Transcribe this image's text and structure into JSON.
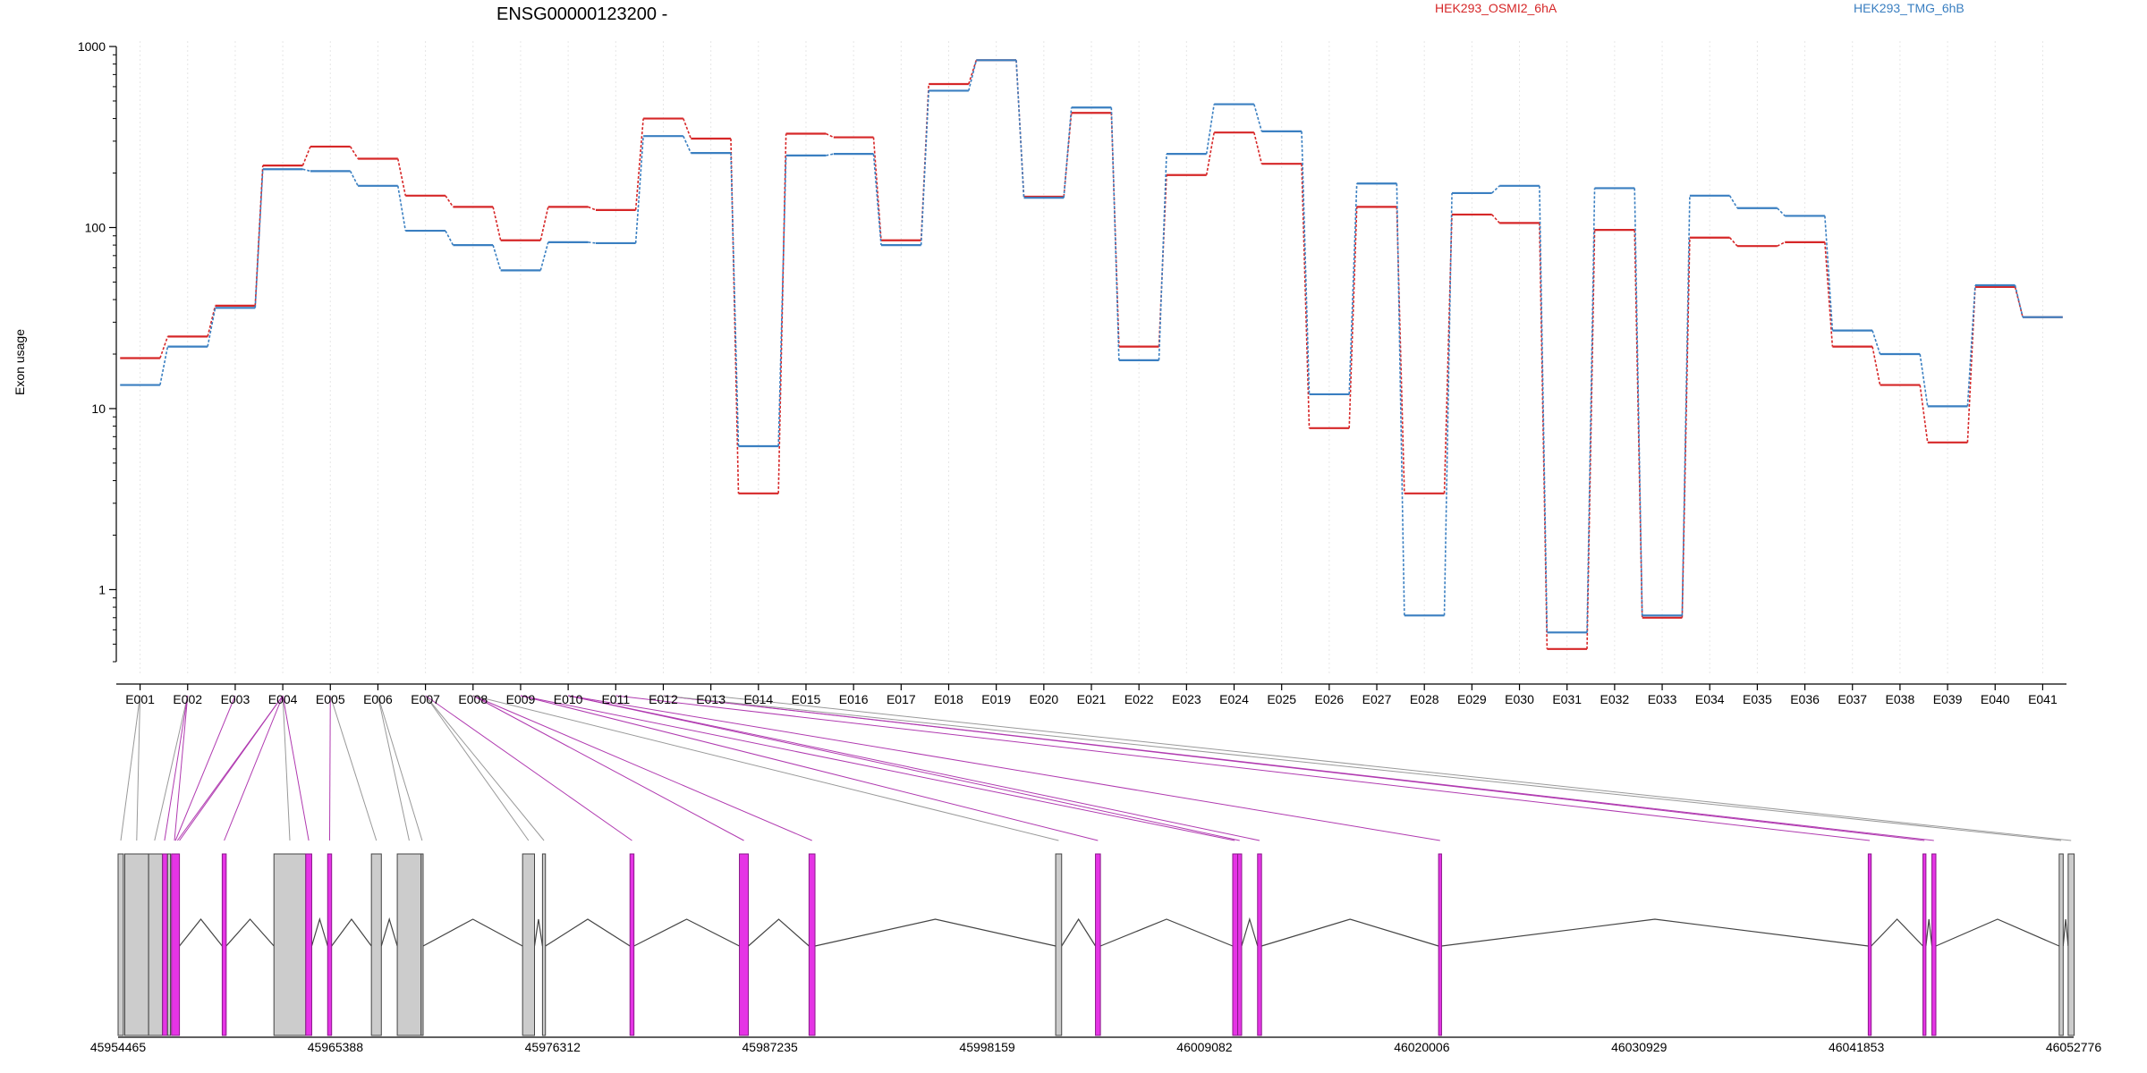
{
  "chart_data": {
    "type": "line",
    "title": "ENSG00000123200 -",
    "ylabel": "Exon usage",
    "xlabel": "",
    "y_scale": "log",
    "ylim": [
      0.4,
      1000
    ],
    "y_ticks": [
      1,
      10,
      100,
      1000
    ],
    "grid": "vertical dotted lines at each exon",
    "legend": "top",
    "colors": {
      "series_a": "#d62728",
      "series_b": "#3a7fc1",
      "spliced_exon": "#e534e5",
      "exon": "#cccccc"
    },
    "categories": [
      "E001",
      "E002",
      "E003",
      "E004",
      "E005",
      "E006",
      "E007",
      "E008",
      "E009",
      "E010",
      "E011",
      "E012",
      "E013",
      "E014",
      "E015",
      "E016",
      "E017",
      "E018",
      "E019",
      "E020",
      "E021",
      "E022",
      "E023",
      "E024",
      "E025",
      "E026",
      "E027",
      "E028",
      "E029",
      "E030",
      "E031",
      "E032",
      "E033",
      "E034",
      "E035",
      "E036",
      "E037",
      "E038",
      "E039",
      "E040",
      "E041"
    ],
    "series": [
      {
        "name": "HEK293_OSMI2_6hA",
        "values": [
          19,
          25,
          37,
          220,
          280,
          240,
          150,
          130,
          85,
          130,
          125,
          400,
          310,
          3.4,
          330,
          315,
          85,
          620,
          840,
          148,
          430,
          22,
          195,
          335,
          225,
          7.8,
          130,
          3.4,
          118,
          106,
          0.47,
          97,
          0.7,
          88,
          79,
          83,
          22,
          13.5,
          6.5,
          47,
          32
        ]
      },
      {
        "name": "HEK293_TMG_6hB",
        "values": [
          13.5,
          22,
          36,
          210,
          205,
          170,
          96,
          80,
          58,
          83,
          82,
          320,
          258,
          6.2,
          250,
          255,
          80,
          570,
          840,
          146,
          460,
          18.5,
          255,
          480,
          340,
          12,
          175,
          0.72,
          155,
          170,
          0.58,
          165,
          0.72,
          150,
          128,
          116,
          27,
          20,
          10.3,
          48,
          32
        ]
      }
    ],
    "genomic_axis": {
      "tick_labels": [
        "45954465",
        "45965388",
        "45976312",
        "45987235",
        "45998159",
        "46009082",
        "46020006",
        "46030929",
        "46041853",
        "46052776"
      ],
      "range": [
        45954465,
        46052776
      ]
    },
    "exon_model": {
      "exons": [
        {
          "start": 45954465,
          "end": 45954730,
          "spliced": false
        },
        {
          "start": 45954800,
          "end": 45956000,
          "spliced": false
        },
        {
          "start": 45956000,
          "end": 45956700,
          "spliced": false
        },
        {
          "start": 45956700,
          "end": 45956950,
          "spliced": true
        },
        {
          "start": 45956950,
          "end": 45957100,
          "spliced": false
        },
        {
          "start": 45957150,
          "end": 45957550,
          "spliced": true
        },
        {
          "start": 45959700,
          "end": 45959900,
          "spliced": true
        },
        {
          "start": 45962300,
          "end": 45963900,
          "spliced": false
        },
        {
          "start": 45963900,
          "end": 45964200,
          "spliced": true
        },
        {
          "start": 45965000,
          "end": 45965200,
          "spliced": true
        },
        {
          "start": 45967200,
          "end": 45967700,
          "spliced": false
        },
        {
          "start": 45968500,
          "end": 45969700,
          "spliced": false
        },
        {
          "start": 45969700,
          "end": 45969800,
          "spliced": false
        },
        {
          "start": 45974800,
          "end": 45975400,
          "spliced": false
        },
        {
          "start": 45975800,
          "end": 45975950,
          "spliced": false
        },
        {
          "start": 45980200,
          "end": 45980400,
          "spliced": true
        },
        {
          "start": 45985700,
          "end": 45986150,
          "spliced": true
        },
        {
          "start": 45989200,
          "end": 45989500,
          "spliced": true
        },
        {
          "start": 46001600,
          "end": 46001900,
          "spliced": false
        },
        {
          "start": 46003600,
          "end": 46003850,
          "spliced": true
        },
        {
          "start": 46010500,
          "end": 46010750,
          "spliced": true
        },
        {
          "start": 46010750,
          "end": 46010950,
          "spliced": true
        },
        {
          "start": 46011750,
          "end": 46011950,
          "spliced": true
        },
        {
          "start": 46020850,
          "end": 46021000,
          "spliced": true
        },
        {
          "start": 46042450,
          "end": 46042600,
          "spliced": true
        },
        {
          "start": 46045200,
          "end": 46045350,
          "spliced": true
        },
        {
          "start": 46045650,
          "end": 46045850,
          "spliced": true
        },
        {
          "start": 46052050,
          "end": 46052250,
          "spliced": false
        },
        {
          "start": 46052500,
          "end": 46052800,
          "spliced": false
        }
      ],
      "exon_link_positions": [
        45954600,
        45955400,
        45956300,
        45956800,
        45957300,
        45957350,
        45957450,
        45957550,
        45959800,
        45963100,
        45964050,
        45965100,
        45967450,
        45969100,
        45969750,
        45975100,
        45975875,
        45980300,
        45985925,
        45989350,
        46001750,
        46003725,
        46010600,
        46010850,
        46011850,
        46020925,
        46042525,
        46045275,
        46045750,
        46052150,
        46052650
      ],
      "exon_link_map": [
        0,
        0,
        1,
        1,
        1,
        2,
        3,
        3,
        3,
        3,
        3,
        4,
        4,
        5,
        5,
        6,
        6,
        6,
        7,
        7,
        7,
        8,
        8,
        9,
        9,
        9,
        10,
        11,
        11,
        11,
        12,
        13,
        14,
        15,
        16,
        17,
        18,
        19,
        20,
        21,
        22,
        23,
        24,
        25,
        26,
        27,
        28,
        29,
        30,
        30,
        30
      ]
    }
  }
}
